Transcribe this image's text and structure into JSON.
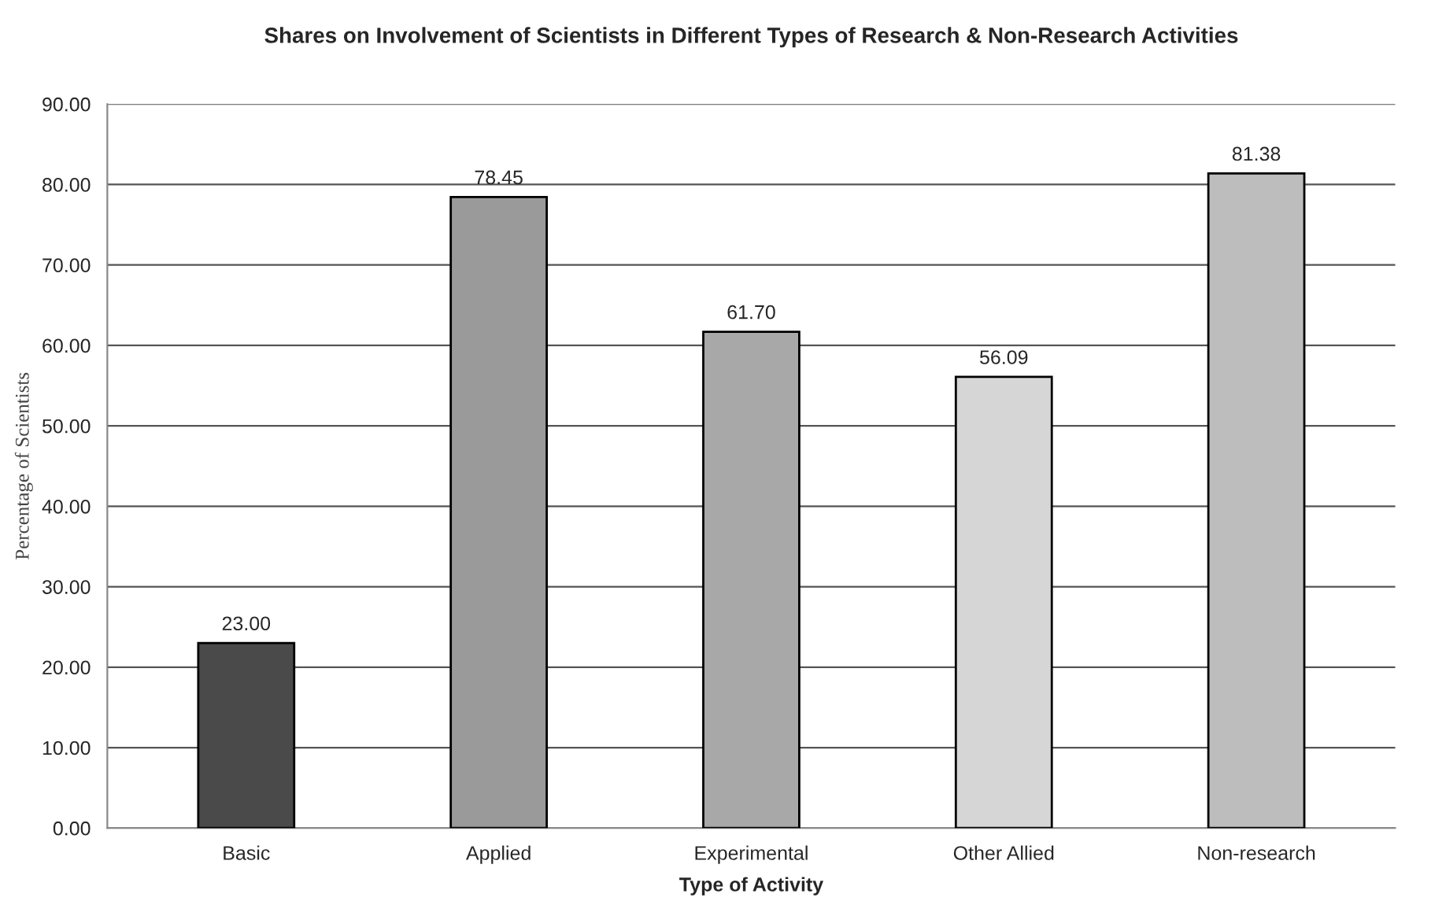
{
  "chart_data": {
    "type": "bar",
    "title": "Shares on Involvement of Scientists in Different Types of Research & Non-Research Activities",
    "xlabel": "Type of Activity",
    "ylabel": "Percentage of Scientists",
    "categories": [
      "Basic",
      "Applied",
      "Experimental",
      "Other Allied",
      "Non-research"
    ],
    "values": [
      23.0,
      78.45,
      61.7,
      56.09,
      81.38
    ],
    "value_labels": [
      "23.00",
      "78.45",
      "61.70",
      "56.09",
      "81.38"
    ],
    "colors": [
      "#4a4a4a",
      "#9a9a9a",
      "#a8a8a8",
      "#d6d6d6",
      "#bdbdbd"
    ],
    "ylim": [
      0,
      90
    ],
    "yticks": [
      {
        "value": 0,
        "label": "0.00"
      },
      {
        "value": 10,
        "label": "10.00"
      },
      {
        "value": 20,
        "label": "20.00"
      },
      {
        "value": 30,
        "label": "30.00"
      },
      {
        "value": 40,
        "label": "40.00"
      },
      {
        "value": 50,
        "label": "50.00"
      },
      {
        "value": 60,
        "label": "60.00"
      },
      {
        "value": 70,
        "label": "70.00"
      },
      {
        "value": 80,
        "label": "80.00"
      },
      {
        "value": 90,
        "label": "90.00"
      }
    ],
    "grid": "y"
  }
}
